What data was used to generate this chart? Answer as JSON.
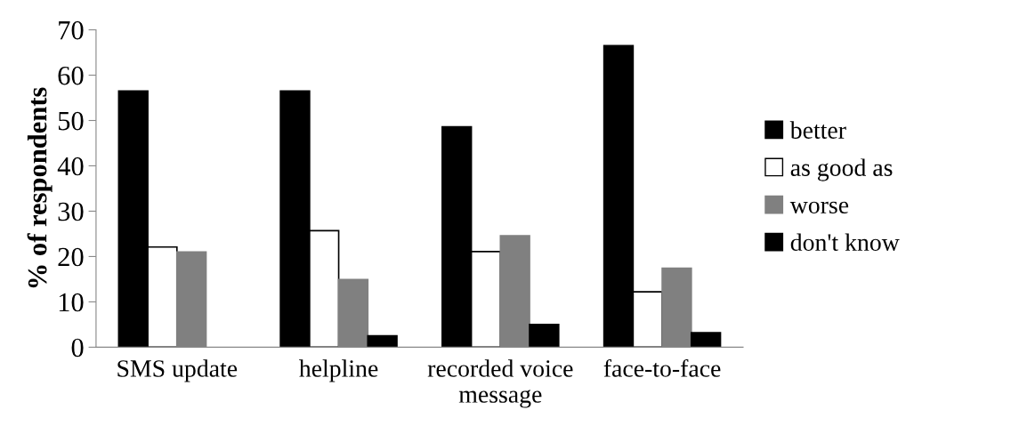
{
  "chart_data": {
    "type": "bar",
    "ylabel": "% of respondents",
    "categories": [
      "SMS update",
      "helpline",
      "recorded voice\nmessage",
      "face-to-face"
    ],
    "series": [
      {
        "name": "better",
        "color": "#000000",
        "values": [
          56.5,
          56.5,
          48.6,
          66.5
        ]
      },
      {
        "name": "as good as",
        "color": "#ffffff",
        "values": [
          22.1,
          25.7,
          21.1,
          12.2
        ]
      },
      {
        "name": "worse",
        "color": "#808080",
        "values": [
          21.0,
          14.9,
          24.6,
          17.4
        ]
      },
      {
        "name": "don't know",
        "color": "#000000",
        "values": [
          null,
          2.5,
          5.0,
          3.2
        ]
      }
    ],
    "ylim": [
      0,
      70
    ],
    "yticks": [
      0,
      10,
      20,
      30,
      40,
      50,
      60,
      70
    ],
    "grid": false,
    "legend": "right"
  }
}
